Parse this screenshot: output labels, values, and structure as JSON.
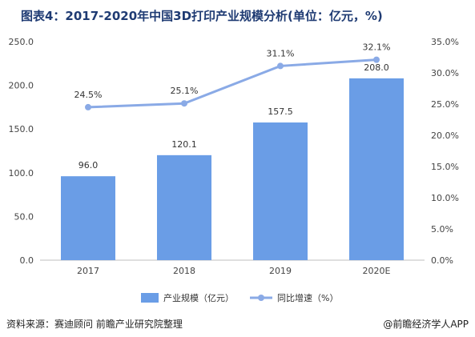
{
  "title": "图表4：2017-2020年中国3D打印产业规模分析(单位：亿元，%)",
  "source": "资料来源：赛迪顾问 前瞻产业研究院整理",
  "brand": "@前瞻经济学人APP",
  "chart_data": {
    "type": "bar+line",
    "categories": [
      "2017",
      "2018",
      "2019",
      "2020E"
    ],
    "series": [
      {
        "name": "产业规模（亿元）",
        "type": "bar",
        "axis": "left",
        "values": [
          96.0,
          120.1,
          157.5,
          208.0
        ],
        "labels": [
          "96.0",
          "120.1",
          "157.5",
          "208.0"
        ],
        "color": "#6a9de6"
      },
      {
        "name": "同比增速（%）",
        "type": "line",
        "axis": "right",
        "values": [
          24.5,
          25.1,
          31.1,
          32.1
        ],
        "labels": [
          "24.5%",
          "25.1%",
          "31.1%",
          "32.1%"
        ],
        "color": "#8aaae6"
      }
    ],
    "y_left": {
      "min": 0,
      "max": 250,
      "ticks": [
        "0.0",
        "50.0",
        "100.0",
        "150.0",
        "200.0",
        "250.0"
      ]
    },
    "y_right": {
      "min": 0,
      "max": 35,
      "ticks": [
        "0.0%",
        "5.0%",
        "10.0%",
        "15.0%",
        "20.0%",
        "25.0%",
        "30.0%",
        "35.0%"
      ]
    },
    "grid": false,
    "legend_position": "bottom"
  }
}
